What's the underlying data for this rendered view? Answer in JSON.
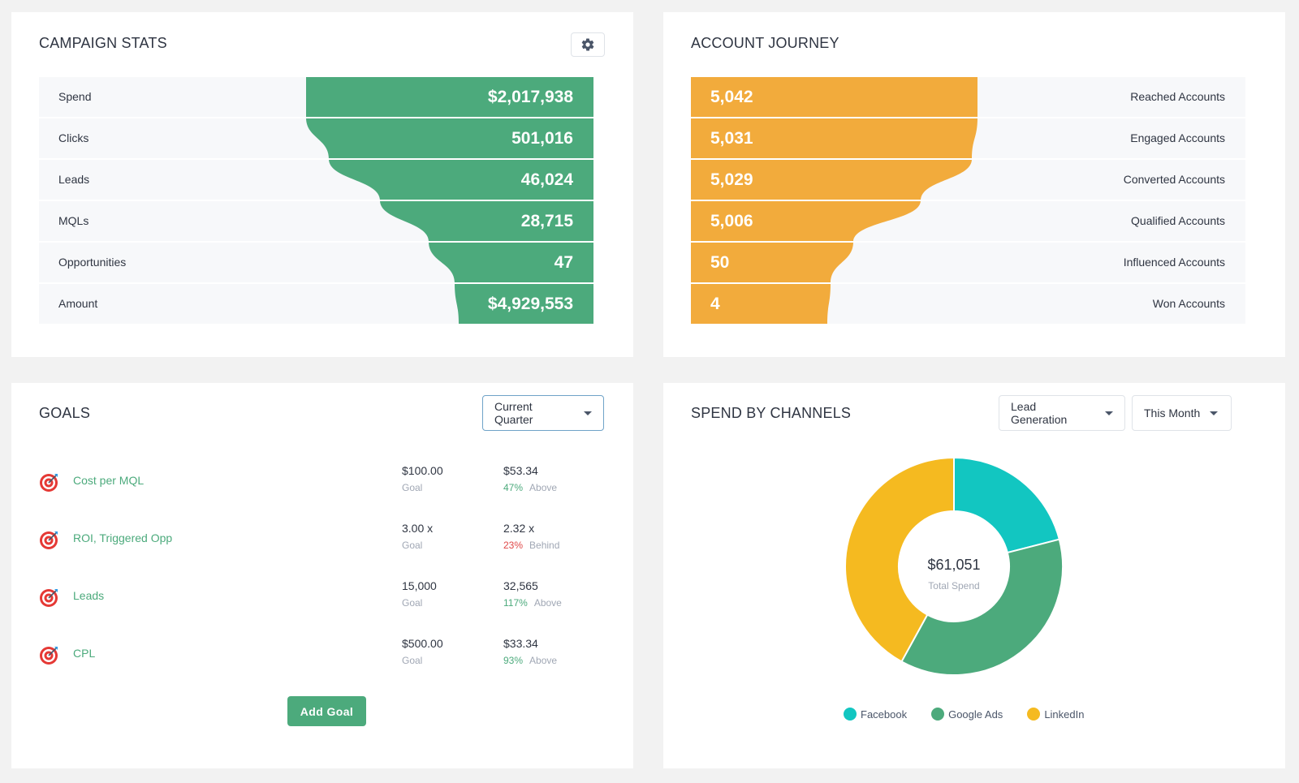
{
  "campaign_stats": {
    "title": "CAMPAIGN STATS",
    "settings_icon": "gear-icon",
    "color": "#4caa7c",
    "rows": [
      {
        "label": "Spend",
        "value": "$2,017,938"
      },
      {
        "label": "Clicks",
        "value": "501,016"
      },
      {
        "label": "Leads",
        "value": "46,024"
      },
      {
        "label": "MQLs",
        "value": "28,715"
      },
      {
        "label": "Opportunities",
        "value": "47"
      },
      {
        "label": "Amount",
        "value": "$4,929,553"
      }
    ]
  },
  "account_journey": {
    "title": "ACCOUNT JOURNEY",
    "color": "#f2ab3c",
    "rows": [
      {
        "label": "Reached Accounts",
        "value": "5,042"
      },
      {
        "label": "Engaged Accounts",
        "value": "5,031"
      },
      {
        "label": "Converted Accounts",
        "value": "5,029"
      },
      {
        "label": "Qualified Accounts",
        "value": "5,006"
      },
      {
        "label": "Influenced Accounts",
        "value": "50"
      },
      {
        "label": "Won Accounts",
        "value": "4"
      }
    ]
  },
  "goals": {
    "title": "GOALS",
    "period": "Current Quarter",
    "goal_label": "Goal",
    "add_button": "Add Goal",
    "items": [
      {
        "name": "Cost per MQL",
        "goal": "$100.00",
        "actual": "$53.34",
        "pct": "47%",
        "status": "Above",
        "trend": "up"
      },
      {
        "name": "ROI, Triggered Opp",
        "goal": "3.00 x",
        "actual": "2.32 x",
        "pct": "23%",
        "status": "Behind",
        "trend": "down"
      },
      {
        "name": "Leads",
        "goal": "15,000",
        "actual": "32,565",
        "pct": "117%",
        "status": "Above",
        "trend": "up"
      },
      {
        "name": "CPL",
        "goal": "$500.00",
        "actual": "$33.34",
        "pct": "93%",
        "status": "Above",
        "trend": "up"
      }
    ]
  },
  "spend_by_channels": {
    "title": "SPEND BY CHANNELS",
    "filter_type": "Lead Generation",
    "filter_period": "This Month",
    "center_value": "$61,051",
    "center_label": "Total Spend"
  },
  "chart_data": {
    "type": "pie",
    "title": "",
    "total": "$61,051",
    "series": [
      {
        "name": "Facebook",
        "value": 21,
        "color": "#12c6c1"
      },
      {
        "name": "Google Ads",
        "value": 37,
        "color": "#4caa7c"
      },
      {
        "name": "LinkedIn",
        "value": 42,
        "color": "#f5ba20"
      }
    ],
    "legend_position": "bottom"
  }
}
